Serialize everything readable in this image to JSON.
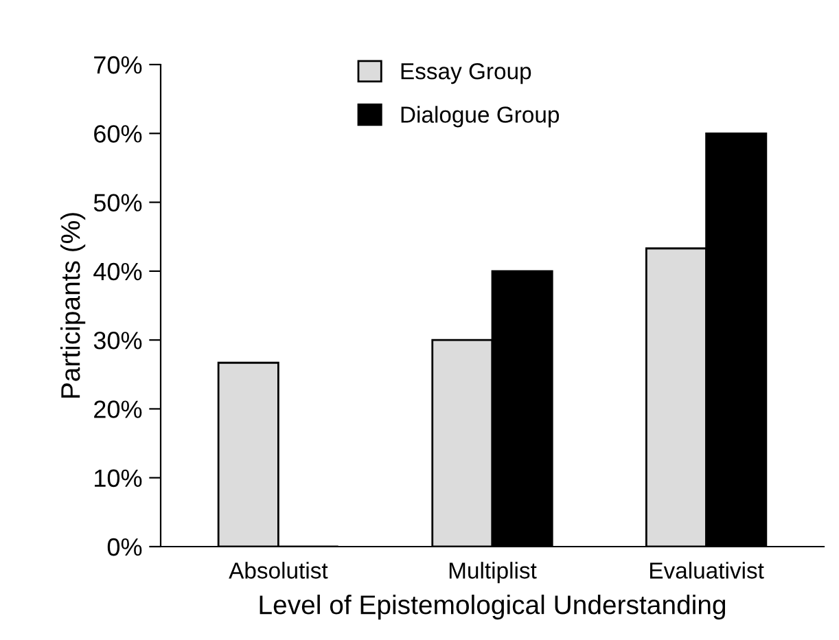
{
  "chart_data": {
    "type": "bar",
    "xlabel": "Level of Epistemological Understanding",
    "ylabel": "Participants (%)",
    "categories": [
      "Absolutist",
      "Multiplist",
      "Evaluativist"
    ],
    "series": [
      {
        "name": "Essay Group",
        "color": "#dcdcdc",
        "values": [
          26.7,
          30,
          43.3
        ]
      },
      {
        "name": "Dialogue Group",
        "color": "#000000",
        "values": [
          0,
          40,
          60
        ]
      }
    ],
    "ylim": [
      0,
      70
    ],
    "yticks": [
      {
        "value": 0,
        "label": "0%"
      },
      {
        "value": 10,
        "label": "10%"
      },
      {
        "value": 20,
        "label": "20%"
      },
      {
        "value": 30,
        "label": "30%"
      },
      {
        "value": 40,
        "label": "40%"
      },
      {
        "value": 50,
        "label": "50%"
      },
      {
        "value": 60,
        "label": "60%"
      },
      {
        "value": 70,
        "label": "70%"
      }
    ],
    "grid": false,
    "legend": "top"
  }
}
